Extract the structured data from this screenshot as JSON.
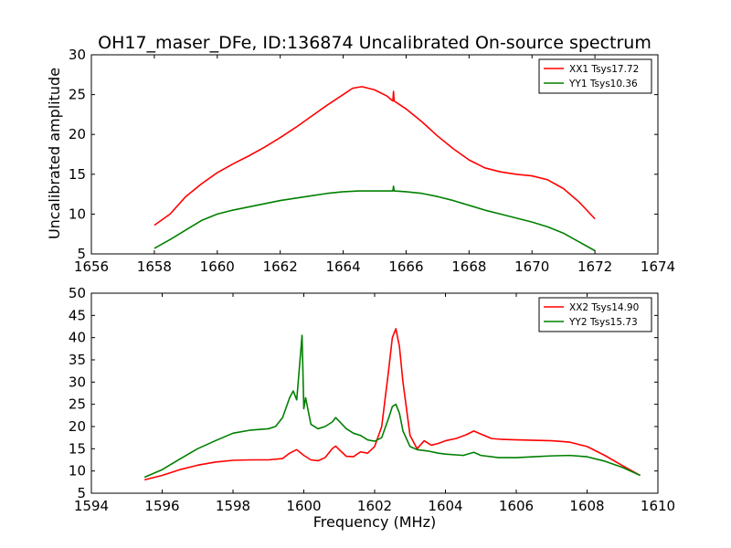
{
  "figure": {
    "title": "OH17_maser_DFe, ID:136874 Uncalibrated On-source spectrum"
  },
  "chart_data": [
    {
      "type": "line",
      "title": "OH17_maser_DFe, ID:136874 Uncalibrated On-source spectrum",
      "xlabel": "",
      "ylabel": "Uncalibrated amplitude",
      "xlim": [
        1656,
        1674
      ],
      "ylim": [
        5,
        30
      ],
      "xticks": [
        1656,
        1658,
        1660,
        1662,
        1664,
        1666,
        1668,
        1670,
        1672,
        1674
      ],
      "yticks": [
        5,
        10,
        15,
        20,
        25,
        30
      ],
      "grid": false,
      "legend_position": "top-right",
      "series": [
        {
          "name": "XX1 Tsys17.72",
          "color": "#ff0000",
          "x": [
            1658.0,
            1658.5,
            1659.0,
            1659.5,
            1660.0,
            1660.5,
            1661.0,
            1661.5,
            1662.0,
            1662.5,
            1663.0,
            1663.5,
            1664.0,
            1664.3,
            1664.6,
            1665.0,
            1665.4,
            1665.58,
            1665.6,
            1665.62,
            1666.0,
            1666.5,
            1667.0,
            1667.5,
            1668.0,
            1668.5,
            1669.0,
            1669.5,
            1670.0,
            1670.5,
            1671.0,
            1671.5,
            1672.0
          ],
          "y": [
            8.6,
            10.0,
            12.2,
            13.8,
            15.2,
            16.3,
            17.3,
            18.4,
            19.6,
            20.9,
            22.3,
            23.7,
            25.0,
            25.8,
            26.0,
            25.6,
            24.8,
            24.2,
            25.4,
            24.2,
            23.2,
            21.6,
            19.8,
            18.2,
            16.8,
            15.8,
            15.3,
            15.0,
            14.8,
            14.3,
            13.2,
            11.5,
            9.4
          ]
        },
        {
          "name": "YY1 Tsys10.36",
          "color": "#008000",
          "x": [
            1658.0,
            1658.5,
            1659.0,
            1659.5,
            1660.0,
            1660.5,
            1661.0,
            1661.5,
            1662.0,
            1662.5,
            1663.0,
            1663.5,
            1664.0,
            1664.5,
            1665.0,
            1665.5,
            1665.58,
            1665.6,
            1665.62,
            1666.0,
            1666.5,
            1667.0,
            1667.5,
            1668.0,
            1668.5,
            1669.0,
            1669.5,
            1670.0,
            1670.5,
            1671.0,
            1671.5,
            1672.0
          ],
          "y": [
            5.7,
            6.8,
            8.0,
            9.2,
            10.0,
            10.5,
            10.9,
            11.3,
            11.7,
            12.0,
            12.3,
            12.6,
            12.8,
            12.9,
            12.9,
            12.9,
            12.9,
            13.5,
            12.9,
            12.8,
            12.6,
            12.2,
            11.7,
            11.1,
            10.5,
            10.0,
            9.5,
            9.0,
            8.4,
            7.6,
            6.5,
            5.4
          ]
        }
      ]
    },
    {
      "type": "line",
      "title": "",
      "xlabel": "Frequency (MHz)",
      "ylabel": "",
      "xlim": [
        1594,
        1610
      ],
      "ylim": [
        5,
        50
      ],
      "xticks": [
        1594,
        1596,
        1598,
        1600,
        1602,
        1604,
        1606,
        1608,
        1610
      ],
      "yticks": [
        5,
        10,
        15,
        20,
        25,
        30,
        35,
        40,
        45,
        50
      ],
      "grid": false,
      "legend_position": "top-right",
      "series": [
        {
          "name": "XX2 Tsys14.90",
          "color": "#ff0000",
          "x": [
            1595.5,
            1596.0,
            1596.5,
            1597.0,
            1597.5,
            1598.0,
            1598.5,
            1599.0,
            1599.4,
            1599.6,
            1599.8,
            1600.0,
            1600.2,
            1600.4,
            1600.6,
            1600.8,
            1600.9,
            1601.0,
            1601.2,
            1601.4,
            1601.6,
            1601.8,
            1602.0,
            1602.2,
            1602.4,
            1602.5,
            1602.6,
            1602.7,
            1602.8,
            1603.0,
            1603.2,
            1603.4,
            1603.6,
            1603.8,
            1604.0,
            1604.3,
            1604.6,
            1604.8,
            1605.0,
            1605.3,
            1605.6,
            1606.0,
            1606.5,
            1607.0,
            1607.5,
            1608.0,
            1608.5,
            1609.0,
            1609.5
          ],
          "y": [
            8.0,
            9.0,
            10.3,
            11.3,
            12.0,
            12.4,
            12.5,
            12.5,
            12.8,
            14.0,
            14.8,
            13.5,
            12.5,
            12.3,
            13.0,
            15.0,
            15.6,
            14.8,
            13.3,
            13.2,
            14.3,
            14.0,
            15.5,
            20.0,
            33.0,
            40.0,
            42.0,
            38.0,
            30.0,
            18.0,
            15.0,
            16.8,
            15.8,
            16.2,
            16.8,
            17.3,
            18.2,
            19.0,
            18.3,
            17.3,
            17.1,
            17.0,
            16.9,
            16.8,
            16.5,
            15.5,
            13.5,
            11.2,
            9.0
          ]
        },
        {
          "name": "YY2 Tsys15.73",
          "color": "#008000",
          "x": [
            1595.5,
            1596.0,
            1596.5,
            1597.0,
            1597.5,
            1598.0,
            1598.5,
            1599.0,
            1599.2,
            1599.4,
            1599.6,
            1599.7,
            1599.8,
            1599.95,
            1600.0,
            1600.05,
            1600.2,
            1600.4,
            1600.6,
            1600.8,
            1600.9,
            1601.0,
            1601.2,
            1601.4,
            1601.6,
            1601.8,
            1602.0,
            1602.2,
            1602.4,
            1602.5,
            1602.6,
            1602.7,
            1602.8,
            1603.0,
            1603.2,
            1603.5,
            1603.8,
            1604.0,
            1604.5,
            1604.8,
            1605.0,
            1605.5,
            1606.0,
            1606.5,
            1607.0,
            1607.5,
            1608.0,
            1608.5,
            1609.0,
            1609.5
          ],
          "y": [
            8.6,
            10.3,
            12.7,
            15.0,
            16.8,
            18.5,
            19.2,
            19.5,
            20.0,
            22.0,
            26.5,
            28.0,
            26.0,
            40.5,
            24.0,
            26.5,
            20.5,
            19.5,
            20.0,
            21.0,
            22.0,
            21.2,
            19.5,
            18.5,
            18.0,
            17.0,
            16.7,
            17.5,
            22.0,
            24.5,
            25.0,
            23.0,
            19.0,
            15.5,
            14.8,
            14.5,
            14.0,
            13.8,
            13.5,
            14.2,
            13.5,
            13.0,
            13.0,
            13.2,
            13.4,
            13.5,
            13.2,
            12.2,
            10.8,
            9.0
          ]
        }
      ]
    }
  ]
}
